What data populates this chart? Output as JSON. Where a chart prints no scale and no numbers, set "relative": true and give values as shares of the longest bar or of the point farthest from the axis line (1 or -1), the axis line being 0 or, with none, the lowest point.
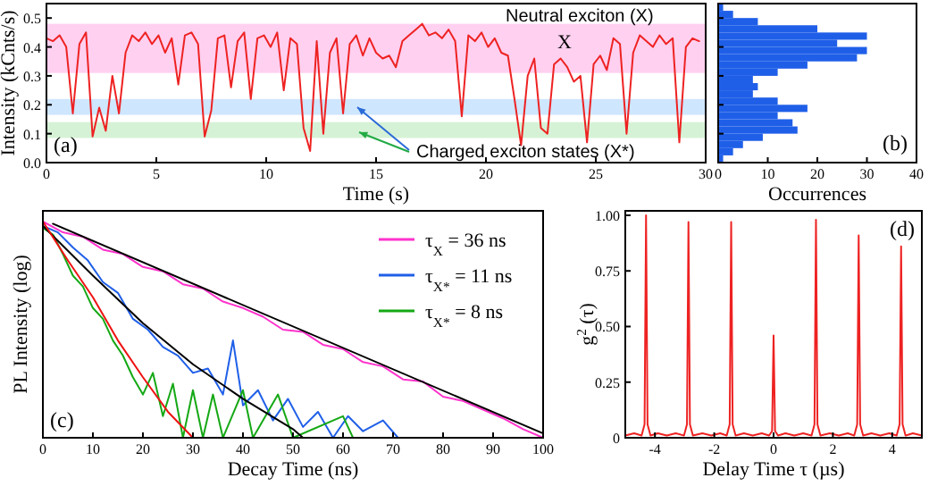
{
  "chart_data": [
    {
      "type": "line",
      "xlabel": "Time (s)",
      "ylabel": "Intensity (kCnts/s)",
      "xlim": [
        0,
        30
      ],
      "xticks": [
        0,
        5,
        10,
        15,
        20,
        25,
        30
      ],
      "ylim": [
        0,
        0.55
      ],
      "yticks": [
        {
          "value": 0,
          "label": "0.0"
        },
        0.1,
        0.2,
        0.3,
        0.4,
        0.5
      ],
      "bands": [
        {
          "axis": "y",
          "from": 0.31,
          "to": 0.48,
          "color": "#ffd0f0"
        },
        {
          "axis": "y",
          "from": 0.165,
          "to": 0.22,
          "color": "#cfe6ff"
        },
        {
          "axis": "y",
          "from": 0.085,
          "to": 0.14,
          "color": "#d6f2d6"
        }
      ],
      "annotations": [
        "Neutral exciton (X)",
        "X",
        "Charged exciton states (X*)",
        "(a)"
      ],
      "series": [
        {
          "color": "#ee2222",
          "x": [
            0,
            0.3,
            0.6,
            0.9,
            1.2,
            1.5,
            1.8,
            2.1,
            2.4,
            2.7,
            3.0,
            3.3,
            3.6,
            3.9,
            4.2,
            4.5,
            4.8,
            5.1,
            5.4,
            5.7,
            6.0,
            6.3,
            6.6,
            6.9,
            7.2,
            7.5,
            7.8,
            8.1,
            8.4,
            8.7,
            9.0,
            9.3,
            9.6,
            9.9,
            10.2,
            10.5,
            10.8,
            11.1,
            11.4,
            11.7,
            12.0,
            12.3,
            12.6,
            12.9,
            13.2,
            13.5,
            13.8,
            14.1,
            14.4,
            14.7,
            15.0,
            15.3,
            15.6,
            15.9,
            16.2,
            16.5,
            16.8,
            17.1,
            17.4,
            17.7,
            18.0,
            18.3,
            18.6,
            18.9,
            19.2,
            19.5,
            19.8,
            20.1,
            20.4,
            20.7,
            21.0,
            21.3,
            21.6,
            21.9,
            22.2,
            22.5,
            22.8,
            23.1,
            23.4,
            23.7,
            24.0,
            24.3,
            24.6,
            24.9,
            25.2,
            25.5,
            25.8,
            26.1,
            26.4,
            26.7,
            27.0,
            27.3,
            27.6,
            27.9,
            28.2,
            28.5,
            28.8,
            29.1,
            29.4,
            29.7
          ],
          "values": [
            0.43,
            0.42,
            0.44,
            0.4,
            0.17,
            0.41,
            0.45,
            0.09,
            0.19,
            0.11,
            0.3,
            0.17,
            0.38,
            0.44,
            0.42,
            0.45,
            0.41,
            0.44,
            0.38,
            0.43,
            0.27,
            0.44,
            0.45,
            0.41,
            0.09,
            0.18,
            0.43,
            0.44,
            0.26,
            0.42,
            0.45,
            0.22,
            0.43,
            0.44,
            0.4,
            0.45,
            0.25,
            0.43,
            0.41,
            0.12,
            0.04,
            0.42,
            0.1,
            0.38,
            0.43,
            0.17,
            0.41,
            0.44,
            0.37,
            0.43,
            0.38,
            0.36,
            0.37,
            0.33,
            0.42,
            0.44,
            0.46,
            0.48,
            0.44,
            0.45,
            0.43,
            0.46,
            0.42,
            0.16,
            0.44,
            0.42,
            0.45,
            0.4,
            0.43,
            0.38,
            0.37,
            0.22,
            0.06,
            0.3,
            0.36,
            0.12,
            0.1,
            0.34,
            0.36,
            0.33,
            0.28,
            0.3,
            0.07,
            0.34,
            0.37,
            0.32,
            0.43,
            0.41,
            0.1,
            0.38,
            0.44,
            0.42,
            0.4,
            0.44,
            0.41,
            0.43,
            0.07,
            0.4,
            0.43,
            0.42
          ]
        }
      ]
    },
    {
      "type": "histogram",
      "orientation": "horizontal",
      "xlabel": "Occurrences",
      "xlim": [
        0,
        40
      ],
      "xticks": [
        0,
        10,
        20,
        30,
        40
      ],
      "ylim": [
        0,
        0.55
      ],
      "yticks": [
        {
          "value": 0.1,
          "label": null
        },
        {
          "value": 0.2,
          "label": null
        },
        {
          "value": 0.3,
          "label": null
        },
        {
          "value": 0.4,
          "label": null
        },
        {
          "value": 0.5,
          "label": null
        }
      ],
      "tick_labels": "x",
      "color": "#1f5fe8",
      "annotations": [
        "(b)"
      ],
      "bins": [
        0,
        0.025,
        0.05,
        0.075,
        0.1,
        0.125,
        0.15,
        0.175,
        0.2,
        0.225,
        0.25,
        0.275,
        0.3,
        0.325,
        0.35,
        0.375,
        0.4,
        0.425,
        0.45,
        0.475,
        0.5,
        0.525,
        0.55
      ],
      "values": [
        1,
        3,
        5,
        9,
        16,
        15,
        12,
        18,
        12,
        7,
        8,
        7,
        12,
        18,
        28,
        30,
        24,
        30,
        20,
        8,
        3,
        1
      ]
    },
    {
      "type": "line",
      "relative": true,
      "xlabel": "Decay Time (ns)",
      "ylabel": "PL Intensity (log)",
      "xlim": [
        0,
        100
      ],
      "xticks": [
        0,
        10,
        20,
        30,
        40,
        50,
        60,
        70,
        80,
        90,
        100
      ],
      "legend": "top right",
      "annotations": [
        "(c)"
      ],
      "series": [
        {
          "name": "τ$_{X}$ = 36 ns",
          "color": "#ff33cc",
          "x": [
            0,
            4,
            8,
            12,
            16,
            20,
            24,
            28,
            32,
            36,
            40,
            44,
            48,
            52,
            56,
            60,
            64,
            68,
            72,
            76,
            80,
            84,
            88,
            92,
            96,
            100
          ],
          "values": [
            1,
            0.95,
            0.93,
            0.87,
            0.85,
            0.79,
            0.77,
            0.71,
            0.69,
            0.63,
            0.6,
            0.56,
            0.5,
            0.49,
            0.43,
            0.41,
            0.35,
            0.33,
            0.27,
            0.26,
            0.19,
            0.17,
            0.13,
            0.09,
            0.04,
            0
          ]
        },
        {
          "name": "τ$_{X*}$ = 11 ns",
          "color": "#1f5fe8",
          "x": [
            0,
            3,
            6,
            9,
            12,
            15,
            18,
            21,
            24,
            27,
            30,
            33,
            36,
            38,
            40,
            43,
            46,
            49,
            52,
            55,
            58,
            61,
            64,
            68,
            71
          ],
          "values": [
            0.98,
            0.95,
            0.88,
            0.82,
            0.72,
            0.67,
            0.55,
            0.5,
            0.42,
            0.38,
            0.3,
            0.32,
            0.2,
            0.45,
            0.15,
            0.22,
            0.08,
            0.18,
            0.05,
            0.12,
            0,
            0.1,
            0.03,
            0.08,
            0
          ]
        },
        {
          "name": "τ$_{X*}$ = 8 ns",
          "color": "#15a815",
          "x": [
            0,
            2,
            4,
            6,
            8,
            10,
            12,
            14,
            16,
            18,
            20,
            22,
            24,
            26,
            28,
            30,
            32,
            34,
            36,
            40,
            42,
            47,
            50,
            60,
            62
          ],
          "values": [
            0.97,
            0.94,
            0.85,
            0.75,
            0.7,
            0.6,
            0.55,
            0.45,
            0.38,
            0.28,
            0.2,
            0.3,
            0.1,
            0.25,
            0,
            0.22,
            0,
            0.2,
            0,
            0.22,
            0,
            0.2,
            0,
            0.1,
            0
          ]
        },
        {
          "color": "#000000",
          "x": [
            2,
            100
          ],
          "values": [
            0.99,
            0.02
          ]
        },
        {
          "color": "#000000",
          "x": [
            0,
            10,
            20,
            30,
            40,
            50,
            52
          ],
          "values": [
            0.98,
            0.75,
            0.53,
            0.34,
            0.18,
            0.04,
            0
          ]
        },
        {
          "color": "#ee1111",
          "x": [
            0,
            5,
            10,
            15,
            20,
            25,
            30
          ],
          "values": [
            1,
            0.82,
            0.65,
            0.45,
            0.28,
            0.12,
            0
          ]
        }
      ]
    },
    {
      "type": "line",
      "xlabel": "Delay Time τ (µs)",
      "ylabel": "g$^{2}$ (τ)",
      "xlim": [
        -5,
        5
      ],
      "xticks": [
        -4,
        -2,
        0,
        2,
        4
      ],
      "ylim": [
        0,
        1.02
      ],
      "yticks": [
        0,
        0.25,
        {
          "value": 0.5,
          "label": "0.50"
        },
        0.75,
        {
          "value": 1,
          "label": "1.00"
        }
      ],
      "annotations": [
        "(d)"
      ],
      "series": [
        {
          "color": "#ee2222",
          "x": [
            -5,
            -4.7,
            -4.45,
            -4.35,
            -4.3,
            -4.25,
            -4.15,
            -3.9,
            -3.6,
            -3.3,
            -3.02,
            -2.92,
            -2.87,
            -2.82,
            -2.72,
            -2.4,
            -2.1,
            -1.8,
            -1.58,
            -1.48,
            -1.43,
            -1.38,
            -1.28,
            -1.0,
            -0.7,
            -0.4,
            -0.15,
            -0.05,
            0,
            0.05,
            0.15,
            0.4,
            0.7,
            1.0,
            1.28,
            1.38,
            1.43,
            1.48,
            1.58,
            1.9,
            2.2,
            2.5,
            2.72,
            2.82,
            2.87,
            2.92,
            3.02,
            3.3,
            3.6,
            3.9,
            4.15,
            4.25,
            4.3,
            4.35,
            4.45,
            4.7,
            5
          ],
          "values": [
            0.01,
            0.02,
            0.01,
            0.06,
            1.0,
            0.06,
            0.01,
            0.02,
            0.01,
            0.02,
            0.01,
            0.06,
            0.97,
            0.06,
            0.01,
            0.02,
            0.01,
            0.02,
            0.01,
            0.06,
            0.97,
            0.06,
            0.01,
            0.02,
            0.01,
            0.02,
            0.01,
            0.03,
            0.46,
            0.03,
            0.01,
            0.02,
            0.01,
            0.02,
            0.01,
            0.06,
            0.98,
            0.06,
            0.01,
            0.02,
            0.01,
            0.02,
            0.01,
            0.06,
            0.91,
            0.06,
            0.01,
            0.02,
            0.01,
            0.02,
            0.01,
            0.06,
            0.86,
            0.06,
            0.01,
            0.02,
            0.01
          ]
        }
      ]
    }
  ]
}
